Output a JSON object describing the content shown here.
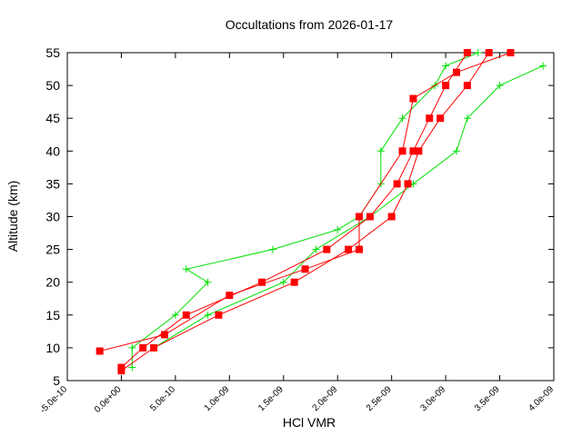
{
  "chart_data": {
    "type": "scatter",
    "title": "Occultations from 2026-01-17",
    "xlabel": "HCl VMR",
    "ylabel": "Altitude (km)",
    "xlim": [
      -5e-10,
      4e-09
    ],
    "ylim": [
      5,
      55
    ],
    "xticks": [
      {
        "value": -5e-10,
        "label": "-5.0e-10"
      },
      {
        "value": 0,
        "label": "0.0e+00"
      },
      {
        "value": 5e-10,
        "label": "5.0e-10"
      },
      {
        "value": 1e-09,
        "label": "1.0e-09"
      },
      {
        "value": 1.5e-09,
        "label": "1.5e-09"
      },
      {
        "value": 2e-09,
        "label": "2.0e-09"
      },
      {
        "value": 2.5e-09,
        "label": "2.5e-09"
      },
      {
        "value": 3e-09,
        "label": "3.0e-09"
      },
      {
        "value": 3.5e-09,
        "label": "3.5e-09"
      },
      {
        "value": 4e-09,
        "label": "4.0e-09"
      }
    ],
    "yticks": [
      5,
      10,
      15,
      20,
      25,
      30,
      35,
      40,
      45,
      50,
      55
    ],
    "series": [
      {
        "color": "#00e000",
        "marker": "plus",
        "x": [
          1e-10,
          1e-10,
          5e-10,
          8e-10,
          6e-10,
          1.4e-09,
          2e-09,
          2.2e-09,
          2.4e-09,
          2.4e-09,
          2.6e-09,
          2.9e-09,
          3e-09,
          3.3e-09
        ],
        "values": [
          7,
          10,
          15,
          20,
          22,
          25,
          28,
          30,
          35,
          40,
          45,
          50,
          53,
          55
        ]
      },
      {
        "color": "#00e000",
        "marker": "plus",
        "x": [
          3e-10,
          8e-10,
          1.5e-09,
          1.8e-09,
          2.3e-09,
          2.7e-09,
          3.1e-09,
          3.2e-09,
          3.5e-09,
          3.9e-09
        ],
        "values": [
          10,
          15,
          20,
          25,
          30,
          35,
          40,
          45,
          50,
          53
        ]
      },
      {
        "color": "#ff0000",
        "marker": "square",
        "x": [
          0,
          2e-10,
          6e-10,
          1.3e-09,
          1.9e-09,
          2.3e-09,
          2.55e-09,
          2.7e-09,
          2.85e-09,
          3e-09,
          3.2e-09
        ],
        "values": [
          7,
          10,
          15,
          20,
          25,
          30,
          35,
          40,
          45,
          50,
          55
        ]
      },
      {
        "color": "#ff0000",
        "marker": "square",
        "x": [
          0,
          3e-10,
          9e-10,
          1.6e-09,
          2.1e-09,
          2.5e-09,
          2.65e-09,
          2.75e-09,
          2.95e-09,
          3.2e-09,
          3.4e-09
        ],
        "values": [
          6.5,
          10,
          15,
          20,
          25,
          30,
          35,
          40,
          45,
          50,
          55
        ]
      },
      {
        "color": "#ff0000",
        "marker": "square",
        "x": [
          -2e-10,
          4e-10,
          1e-09,
          1.7e-09,
          2.2e-09,
          2.2e-09,
          2.6e-09,
          2.7e-09,
          3.1e-09,
          3.6e-09
        ],
        "values": [
          9.5,
          12,
          18,
          22,
          25,
          30,
          40,
          48,
          52,
          55
        ]
      }
    ]
  }
}
